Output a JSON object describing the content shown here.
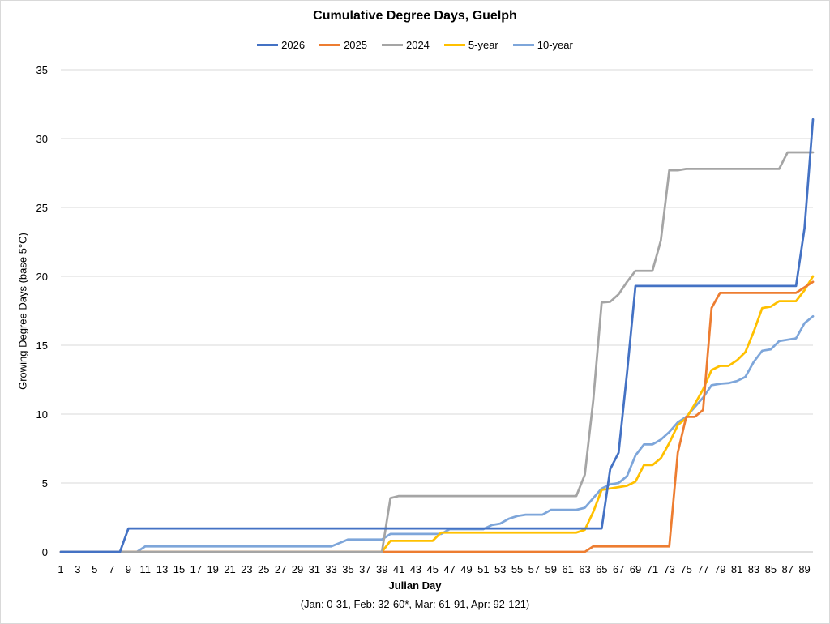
{
  "chart_data": {
    "type": "line",
    "title": "Cumulative Degree Days, Guelph",
    "xlabel": "Julian Day",
    "xnote": "(Jan: 0-31, Feb: 32-60*, Mar: 61-91, Apr: 92-121)",
    "ylabel": "Growing Degree Days (base 5°C)",
    "ylim": [
      0,
      35
    ],
    "yticks": [
      0,
      5,
      10,
      15,
      20,
      25,
      30,
      35
    ],
    "xlim": [
      1,
      90
    ],
    "xticks": [
      1,
      3,
      5,
      7,
      9,
      11,
      13,
      15,
      17,
      19,
      21,
      23,
      25,
      27,
      29,
      31,
      33,
      35,
      37,
      39,
      41,
      43,
      45,
      47,
      49,
      51,
      53,
      55,
      57,
      59,
      61,
      63,
      65,
      67,
      69,
      71,
      73,
      75,
      77,
      79,
      81,
      83,
      85,
      87,
      89
    ],
    "grid": "horizontal",
    "legend_position": "top",
    "series": [
      {
        "name": "2026",
        "color": "#4472C4",
        "points": [
          [
            1,
            0
          ],
          [
            8,
            0
          ],
          [
            9,
            1.7
          ],
          [
            65,
            1.7
          ],
          [
            66,
            6
          ],
          [
            67,
            7.2
          ],
          [
            68,
            13
          ],
          [
            69,
            19.3
          ],
          [
            88,
            19.3
          ],
          [
            89,
            23.5
          ],
          [
            90,
            31.4
          ]
        ]
      },
      {
        "name": "2025",
        "color": "#ED7D31",
        "points": [
          [
            1,
            0
          ],
          [
            63,
            0
          ],
          [
            64,
            0.4
          ],
          [
            73,
            0.4
          ],
          [
            74,
            7.2
          ],
          [
            75,
            9.8
          ],
          [
            76,
            9.8
          ],
          [
            77,
            10.3
          ],
          [
            78,
            17.7
          ],
          [
            79,
            18.8
          ],
          [
            88,
            18.8
          ],
          [
            90,
            19.6
          ]
        ]
      },
      {
        "name": "2024",
        "color": "#A5A5A5",
        "points": [
          [
            1,
            0
          ],
          [
            39,
            0
          ],
          [
            40,
            3.9
          ],
          [
            41,
            4.05
          ],
          [
            62,
            4.05
          ],
          [
            63,
            5.6
          ],
          [
            64,
            11
          ],
          [
            65,
            18.1
          ],
          [
            66,
            18.15
          ],
          [
            67,
            18.7
          ],
          [
            68,
            19.6
          ],
          [
            69,
            20.4
          ],
          [
            71,
            20.4
          ],
          [
            72,
            22.6
          ],
          [
            73,
            27.7
          ],
          [
            74,
            27.7
          ],
          [
            75,
            27.8
          ],
          [
            86,
            27.8
          ],
          [
            87,
            29.0
          ],
          [
            90,
            29.0
          ]
        ]
      },
      {
        "name": "5-year",
        "color": "#FFC000",
        "points": [
          [
            1,
            0
          ],
          [
            39,
            0
          ],
          [
            40,
            0.8
          ],
          [
            45,
            0.8
          ],
          [
            46,
            1.4
          ],
          [
            62,
            1.4
          ],
          [
            63,
            1.6
          ],
          [
            64,
            2.9
          ],
          [
            65,
            4.5
          ],
          [
            66,
            4.6
          ],
          [
            67,
            4.7
          ],
          [
            68,
            4.8
          ],
          [
            69,
            5.1
          ],
          [
            70,
            6.3
          ],
          [
            71,
            6.3
          ],
          [
            72,
            6.8
          ],
          [
            73,
            7.9
          ],
          [
            74,
            9.2
          ],
          [
            75,
            9.7
          ],
          [
            76,
            10.7
          ],
          [
            77,
            11.8
          ],
          [
            78,
            13.2
          ],
          [
            79,
            13.5
          ],
          [
            80,
            13.5
          ],
          [
            81,
            13.9
          ],
          [
            82,
            14.5
          ],
          [
            83,
            16.0
          ],
          [
            84,
            17.7
          ],
          [
            85,
            17.8
          ],
          [
            86,
            18.2
          ],
          [
            88,
            18.2
          ],
          [
            89,
            19.0
          ],
          [
            90,
            20.0
          ]
        ]
      },
      {
        "name": "10-year",
        "color": "#7EA6DA",
        "points": [
          [
            1,
            0
          ],
          [
            10,
            0
          ],
          [
            11,
            0.4
          ],
          [
            33,
            0.4
          ],
          [
            34,
            0.65
          ],
          [
            35,
            0.9
          ],
          [
            39,
            0.9
          ],
          [
            40,
            1.3
          ],
          [
            46,
            1.3
          ],
          [
            47,
            1.65
          ],
          [
            51,
            1.65
          ],
          [
            52,
            1.95
          ],
          [
            53,
            2.05
          ],
          [
            54,
            2.4
          ],
          [
            55,
            2.6
          ],
          [
            56,
            2.7
          ],
          [
            58,
            2.7
          ],
          [
            59,
            3.05
          ],
          [
            62,
            3.05
          ],
          [
            63,
            3.2
          ],
          [
            64,
            3.9
          ],
          [
            65,
            4.6
          ],
          [
            66,
            4.9
          ],
          [
            67,
            5.0
          ],
          [
            68,
            5.5
          ],
          [
            69,
            7.0
          ],
          [
            70,
            7.8
          ],
          [
            71,
            7.8
          ],
          [
            72,
            8.15
          ],
          [
            73,
            8.7
          ],
          [
            74,
            9.4
          ],
          [
            75,
            9.8
          ],
          [
            76,
            10.5
          ],
          [
            77,
            11.2
          ],
          [
            78,
            12.1
          ],
          [
            79,
            12.2
          ],
          [
            80,
            12.25
          ],
          [
            81,
            12.4
          ],
          [
            82,
            12.7
          ],
          [
            83,
            13.8
          ],
          [
            84,
            14.6
          ],
          [
            85,
            14.7
          ],
          [
            86,
            15.3
          ],
          [
            87,
            15.4
          ],
          [
            88,
            15.5
          ],
          [
            89,
            16.6
          ],
          [
            90,
            17.1
          ]
        ]
      }
    ]
  }
}
